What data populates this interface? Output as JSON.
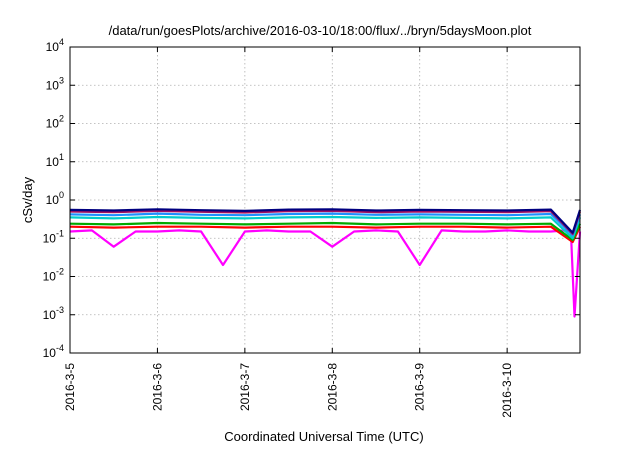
{
  "chart_data": {
    "type": "line",
    "title": "/data/run/goesPlots/archive/2016-03-10/18:00/flux/../bryn/5daysMoon.plot",
    "xlabel": "Coordinated Universal Time (UTC)",
    "ylabel": "cSv/day",
    "y_scale": "log",
    "ylim": [
      0.0001,
      10000
    ],
    "xlim": [
      "2016-03-05 00:00",
      "2016-03-10 20:00"
    ],
    "grid": true,
    "legend": "none",
    "x_ticks": [
      {
        "value": "2016-03-05",
        "label": "2016-3-5"
      },
      {
        "value": "2016-03-06",
        "label": "2016-3-6"
      },
      {
        "value": "2016-03-07",
        "label": "2016-3-7"
      },
      {
        "value": "2016-03-08",
        "label": "2016-3-8"
      },
      {
        "value": "2016-03-09",
        "label": "2016-3-9"
      },
      {
        "value": "2016-03-10",
        "label": "2016-3-10"
      }
    ],
    "y_ticks": [
      {
        "value": 0.0001,
        "base": "10",
        "exp": "-4"
      },
      {
        "value": 0.001,
        "base": "10",
        "exp": "-3"
      },
      {
        "value": 0.01,
        "base": "10",
        "exp": "-2"
      },
      {
        "value": 0.1,
        "base": "10",
        "exp": "-1"
      },
      {
        "value": 1,
        "base": "10",
        "exp": "0"
      },
      {
        "value": 10,
        "base": "10",
        "exp": "1"
      },
      {
        "value": 100,
        "base": "10",
        "exp": "2"
      },
      {
        "value": 1000,
        "base": "10",
        "exp": "3"
      },
      {
        "value": 10000,
        "base": "10",
        "exp": "4"
      }
    ],
    "series": [
      {
        "color": "#ff00ff",
        "x": [
          "2016-03-05 00:00",
          "2016-03-05 06:00",
          "2016-03-05 12:00",
          "2016-03-05 18:00",
          "2016-03-06 00:00",
          "2016-03-06 06:00",
          "2016-03-06 12:00",
          "2016-03-06 18:00",
          "2016-03-07 00:00",
          "2016-03-07 06:00",
          "2016-03-07 12:00",
          "2016-03-07 18:00",
          "2016-03-08 00:00",
          "2016-03-08 06:00",
          "2016-03-08 12:00",
          "2016-03-08 18:00",
          "2016-03-09 00:00",
          "2016-03-09 06:00",
          "2016-03-09 12:00",
          "2016-03-09 18:00",
          "2016-03-10 00:00",
          "2016-03-10 06:00",
          "2016-03-10 12:00",
          "2016-03-10 16:00",
          "2016-03-10 17:30",
          "2016-03-10 18:30",
          "2016-03-10 20:00"
        ],
        "y": [
          0.15,
          0.16,
          0.06,
          0.15,
          0.15,
          0.16,
          0.15,
          0.02,
          0.15,
          0.16,
          0.15,
          0.15,
          0.06,
          0.15,
          0.16,
          0.15,
          0.02,
          0.16,
          0.15,
          0.15,
          0.16,
          0.15,
          0.15,
          0.16,
          0.15,
          0.0009,
          0.15
        ]
      },
      {
        "color": "#ff0000",
        "x": [
          "2016-03-05 00:00",
          "2016-03-05 12:00",
          "2016-03-06 00:00",
          "2016-03-06 12:00",
          "2016-03-07 00:00",
          "2016-03-07 12:00",
          "2016-03-08 00:00",
          "2016-03-08 12:00",
          "2016-03-09 00:00",
          "2016-03-09 12:00",
          "2016-03-10 00:00",
          "2016-03-10 12:00",
          "2016-03-10 18:00",
          "2016-03-10 20:00"
        ],
        "y": [
          0.2,
          0.19,
          0.2,
          0.2,
          0.19,
          0.2,
          0.2,
          0.19,
          0.2,
          0.2,
          0.19,
          0.2,
          0.08,
          0.2
        ]
      },
      {
        "color": "#00aa00",
        "x": [
          "2016-03-05 00:00",
          "2016-03-05 12:00",
          "2016-03-06 00:00",
          "2016-03-06 12:00",
          "2016-03-07 00:00",
          "2016-03-07 12:00",
          "2016-03-08 00:00",
          "2016-03-08 12:00",
          "2016-03-09 00:00",
          "2016-03-09 12:00",
          "2016-03-10 00:00",
          "2016-03-10 12:00",
          "2016-03-10 18:00",
          "2016-03-10 20:00"
        ],
        "y": [
          0.24,
          0.23,
          0.25,
          0.24,
          0.23,
          0.24,
          0.25,
          0.23,
          0.24,
          0.24,
          0.23,
          0.24,
          0.09,
          0.24
        ]
      },
      {
        "color": "#00cccc",
        "x": [
          "2016-03-05 00:00",
          "2016-03-05 12:00",
          "2016-03-06 00:00",
          "2016-03-06 12:00",
          "2016-03-07 00:00",
          "2016-03-07 12:00",
          "2016-03-08 00:00",
          "2016-03-08 12:00",
          "2016-03-09 00:00",
          "2016-03-09 12:00",
          "2016-03-10 00:00",
          "2016-03-10 12:00",
          "2016-03-10 18:00",
          "2016-03-10 20:00"
        ],
        "y": [
          0.35,
          0.33,
          0.36,
          0.34,
          0.33,
          0.35,
          0.36,
          0.34,
          0.35,
          0.34,
          0.33,
          0.35,
          0.1,
          0.35
        ]
      },
      {
        "color": "#1e90ff",
        "x": [
          "2016-03-05 00:00",
          "2016-03-05 12:00",
          "2016-03-06 00:00",
          "2016-03-06 12:00",
          "2016-03-07 00:00",
          "2016-03-07 12:00",
          "2016-03-08 00:00",
          "2016-03-08 12:00",
          "2016-03-09 00:00",
          "2016-03-09 12:00",
          "2016-03-10 00:00",
          "2016-03-10 12:00",
          "2016-03-10 18:00",
          "2016-03-10 20:00"
        ],
        "y": [
          0.42,
          0.4,
          0.44,
          0.41,
          0.4,
          0.43,
          0.44,
          0.41,
          0.42,
          0.41,
          0.4,
          0.43,
          0.12,
          0.42
        ]
      },
      {
        "color": "#a01060",
        "x": [
          "2016-03-05 00:00",
          "2016-03-05 12:00",
          "2016-03-06 00:00",
          "2016-03-06 12:00",
          "2016-03-07 00:00",
          "2016-03-07 12:00",
          "2016-03-08 00:00",
          "2016-03-08 12:00",
          "2016-03-09 00:00",
          "2016-03-09 12:00",
          "2016-03-10 00:00",
          "2016-03-10 12:00",
          "2016-03-10 18:00",
          "2016-03-10 20:00"
        ],
        "y": [
          0.5,
          0.48,
          0.52,
          0.49,
          0.47,
          0.51,
          0.52,
          0.48,
          0.5,
          0.49,
          0.48,
          0.51,
          0.13,
          0.5
        ]
      },
      {
        "color": "#000080",
        "x": [
          "2016-03-05 00:00",
          "2016-03-05 12:00",
          "2016-03-06 00:00",
          "2016-03-06 12:00",
          "2016-03-07 00:00",
          "2016-03-07 12:00",
          "2016-03-08 00:00",
          "2016-03-08 12:00",
          "2016-03-09 00:00",
          "2016-03-09 12:00",
          "2016-03-10 00:00",
          "2016-03-10 12:00",
          "2016-03-10 18:00",
          "2016-03-10 20:00"
        ],
        "y": [
          0.55,
          0.53,
          0.57,
          0.54,
          0.52,
          0.56,
          0.57,
          0.53,
          0.55,
          0.54,
          0.53,
          0.56,
          0.14,
          0.55
        ]
      }
    ]
  }
}
